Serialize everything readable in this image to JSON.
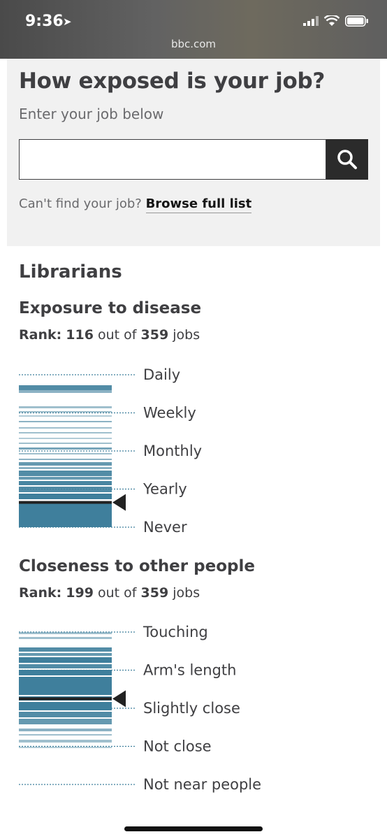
{
  "status_bar": {
    "time": "9:36",
    "url": "bbc.com",
    "icons": [
      "location-arrow-icon",
      "signal-icon",
      "wifi-icon",
      "battery-icon"
    ]
  },
  "search": {
    "title": "How exposed is your job?",
    "subtitle": "Enter your job below",
    "input_value": "",
    "placeholder": "",
    "button_icon": "search-icon",
    "cant_find": "Can't find your job?",
    "browse_link": "Browse full list"
  },
  "result": {
    "job": "Librarians",
    "sections": [
      {
        "title": "Exposure to disease",
        "rank_label": "Rank:",
        "rank": "116",
        "out_of": "out of",
        "total": "359",
        "jobs_word": "jobs",
        "levels": [
          "Daily",
          "Weekly",
          "Monthly",
          "Yearly",
          "Never"
        ],
        "marker_level": 3.35
      },
      {
        "title": "Closeness to other people",
        "rank_label": "Rank:",
        "rank": "199",
        "out_of": "out of",
        "total": "359",
        "jobs_word": "jobs",
        "levels": [
          "Touching",
          "Arm's length",
          "Slightly close",
          "Not close",
          "Not near people"
        ],
        "marker_level": 1.75
      }
    ]
  },
  "colors": {
    "bar": "#3f7f9c",
    "bar_light": "#7fa9bd",
    "marker": "#222222",
    "dotted": "#3f7f9c"
  }
}
